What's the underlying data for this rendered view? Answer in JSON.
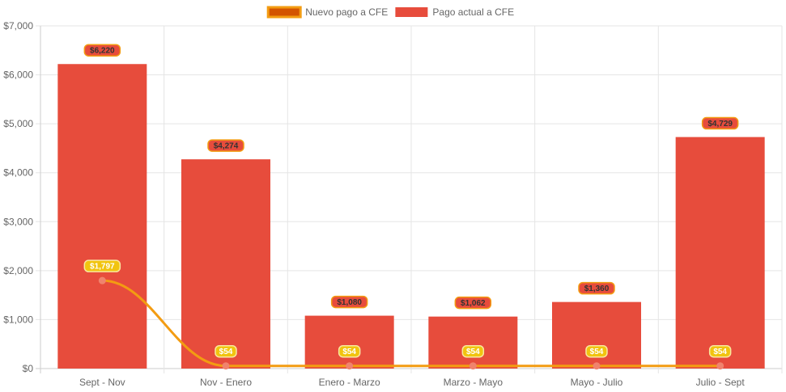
{
  "chart_data": {
    "type": "bar",
    "categories": [
      "Sept - Nov",
      "Nov - Enero",
      "Enero - Marzo",
      "Marzo - Mayo",
      "Mayo - Julio",
      "Julio - Sept"
    ],
    "series": [
      {
        "name": "Pago actual a CFE",
        "kind": "bar",
        "color": "#e74c3c",
        "values": [
          6220,
          4274,
          1080,
          1062,
          1360,
          4729
        ],
        "labels": [
          "$6,220",
          "$4,274",
          "$1,080",
          "$1,062",
          "$1,360",
          "$4,729"
        ],
        "label_bg": "#e74c3c",
        "label_border": "#f39c12",
        "label_text_color": "#333333"
      },
      {
        "name": "Nuevo pago a CFE",
        "kind": "line",
        "color": "#f39c12",
        "point_color": "#f0836d",
        "legend_fill": "#d35400",
        "values": [
          1797,
          54,
          54,
          54,
          54,
          54
        ],
        "labels": [
          "$1,797",
          "$54",
          "$54",
          "$54",
          "$54",
          "$54"
        ],
        "label_bg": "#f1c40f",
        "label_border": "#f9e79f",
        "label_text_color": "#ffffff"
      }
    ],
    "ylim": [
      0,
      7000
    ],
    "y_ticks": [
      0,
      1000,
      2000,
      3000,
      4000,
      5000,
      6000,
      7000
    ],
    "y_tick_labels": [
      "$0",
      "$1,000",
      "$2,000",
      "$3,000",
      "$4,000",
      "$5,000",
      "$6,000",
      "$7,000"
    ],
    "grid": true,
    "legend_position": "top-center",
    "title": "",
    "xlabel": "",
    "ylabel": ""
  }
}
